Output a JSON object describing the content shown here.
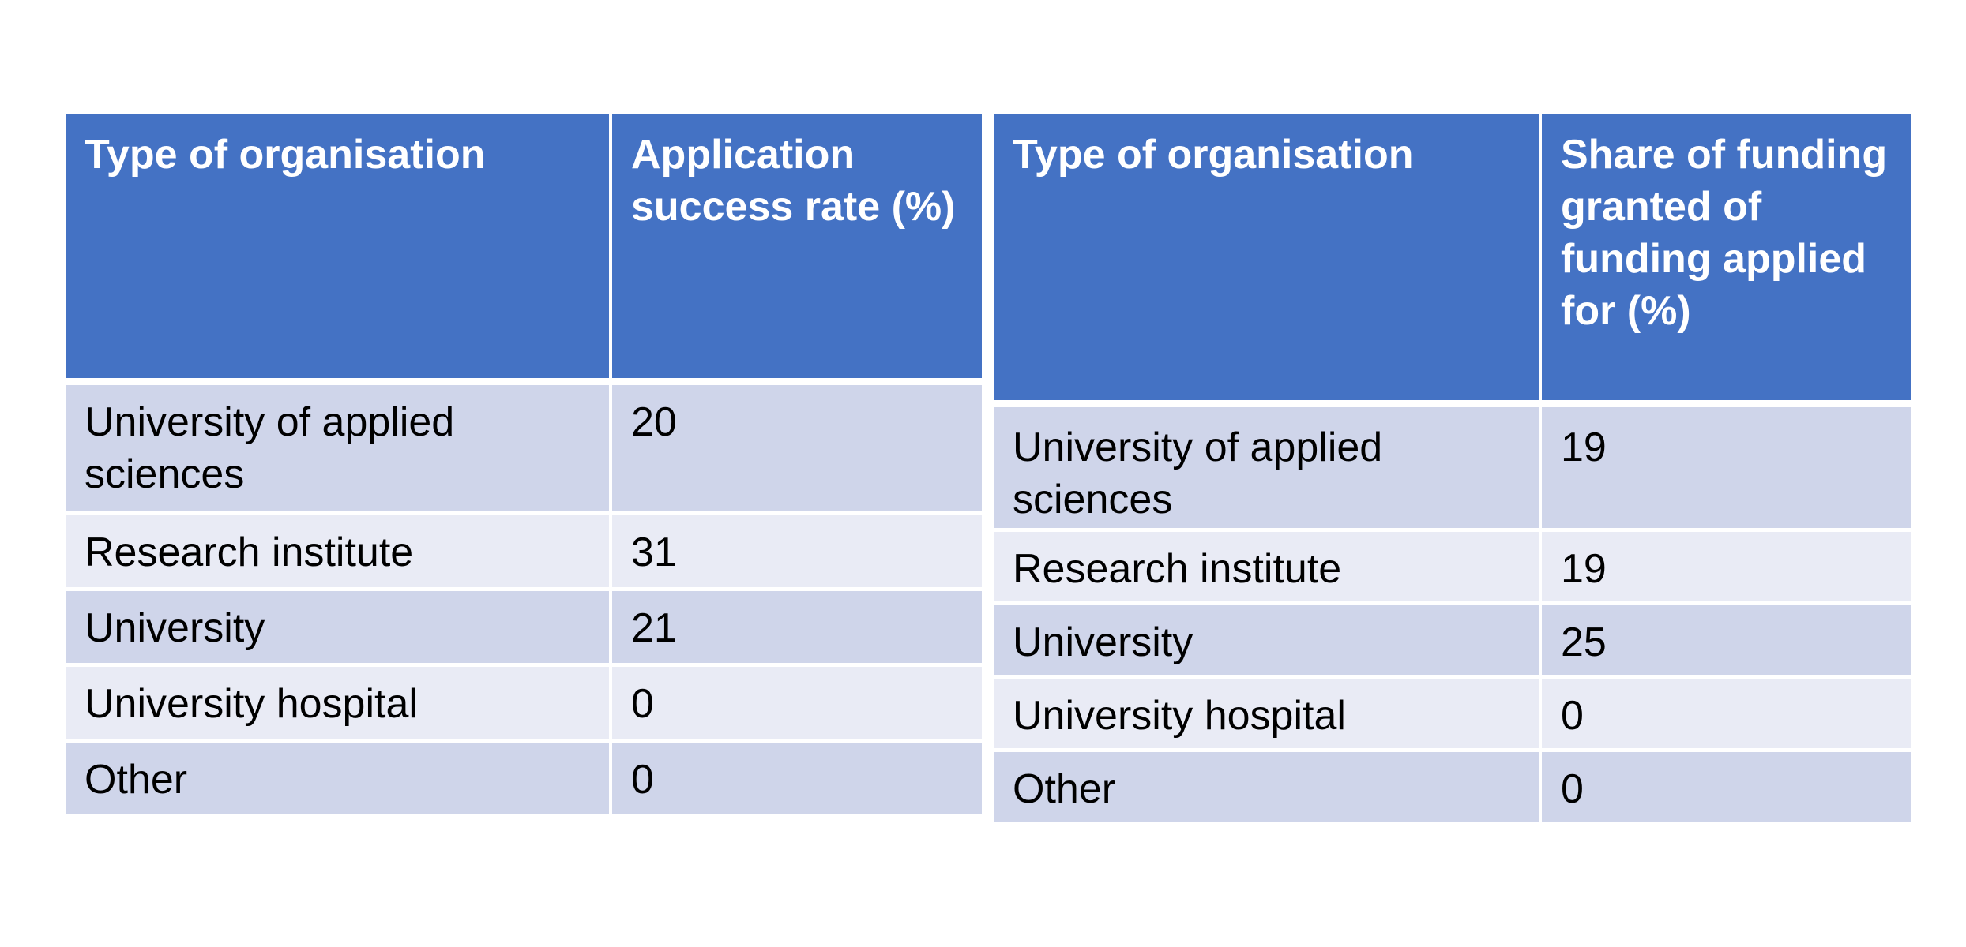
{
  "chart_data": [
    {
      "type": "table",
      "columns": [
        "Type of organisation",
        "Application success rate (%)"
      ],
      "rows": [
        [
          "University of applied sciences",
          "20"
        ],
        [
          "Research institute",
          "31"
        ],
        [
          "University",
          "21"
        ],
        [
          "University hospital",
          "0"
        ],
        [
          "Other",
          "0"
        ]
      ]
    },
    {
      "type": "table",
      "columns": [
        "Type of organisation",
        "Share of funding granted of funding applied for (%)"
      ],
      "rows": [
        [
          "University of applied sciences",
          "19"
        ],
        [
          "Research institute",
          "19"
        ],
        [
          "University",
          "25"
        ],
        [
          "University hospital",
          "0"
        ],
        [
          "Other",
          "0"
        ]
      ]
    }
  ],
  "colors": {
    "header_bg": "#4472c4",
    "row_dark": "#cfd5ea",
    "row_light": "#e9ebf5"
  }
}
